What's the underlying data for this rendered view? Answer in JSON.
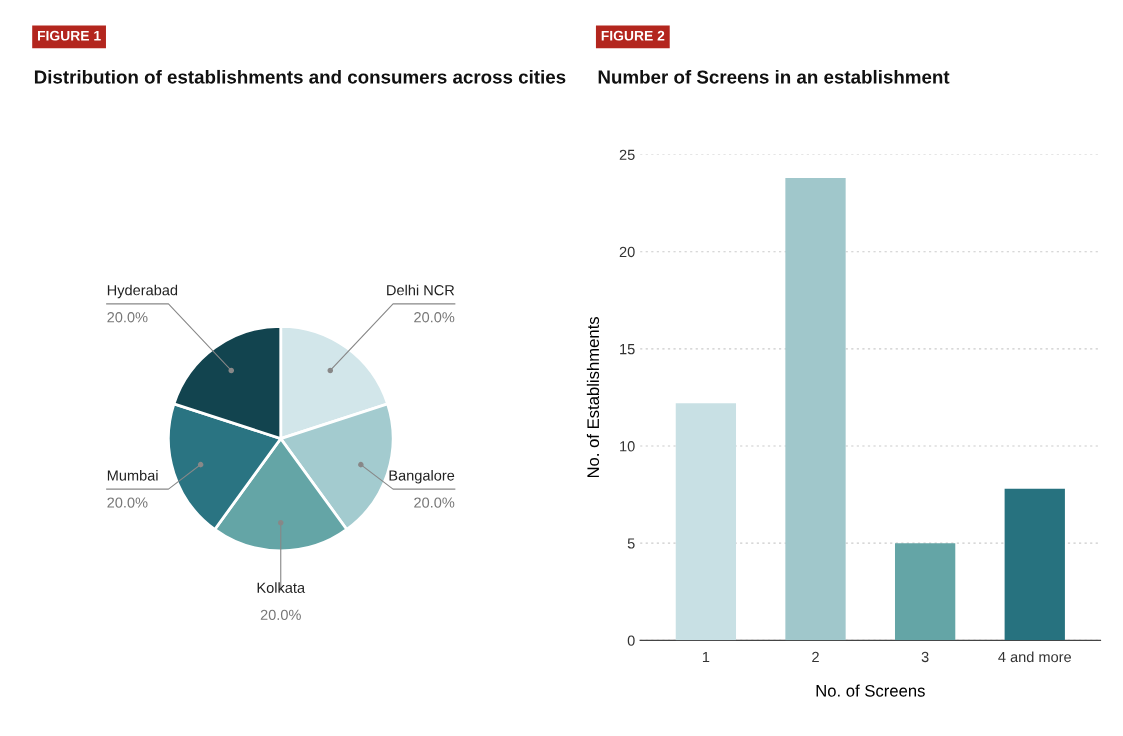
{
  "chart_data": [
    {
      "type": "pie",
      "title": "Distribution of establishments and consumers across cities",
      "annotations": [
        "FIGURE 1"
      ],
      "categories": [
        "Delhi NCR",
        "Bangalore",
        "Kolkata",
        "Mumbai",
        "Hyderabad"
      ],
      "values": [
        20,
        20,
        20,
        20,
        20
      ],
      "value_labels": [
        "20.0%",
        "20.0%",
        "20.0%",
        "20.0%",
        "20.0%"
      ],
      "colors": [
        "#d2e6ea",
        "#a3cbcf",
        "#64a5a6",
        "#2a7482",
        "#12444f"
      ]
    },
    {
      "type": "bar",
      "title": "Number of Screens in an establishment",
      "annotations": [
        "FIGURE 2"
      ],
      "categories": [
        "1",
        "2",
        "3",
        "4 and more"
      ],
      "values": [
        12.2,
        23.8,
        5,
        7.8
      ],
      "colors": [
        "#c8e0e4",
        "#a0c7cb",
        "#64a5a6",
        "#27727f"
      ],
      "xlabel": "No. of Screens",
      "ylabel": "No. of Establishments",
      "ylim": [
        0,
        25
      ],
      "yticks": [
        0,
        5,
        10,
        15,
        20,
        25
      ],
      "grid": "y"
    }
  ]
}
